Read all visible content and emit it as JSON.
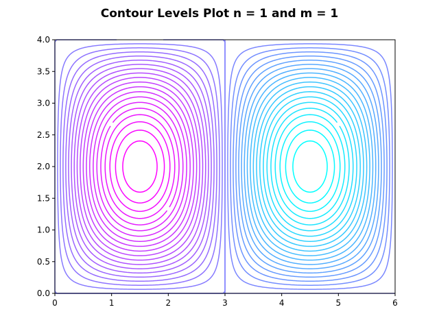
{
  "chart_data": {
    "type": "contour",
    "title": "Contour Levels Plot n = 1 and m = 1",
    "xlabel": "",
    "ylabel": "",
    "xlim": [
      0,
      6
    ],
    "ylim": [
      0,
      4
    ],
    "x_ticks": [
      "0",
      "1",
      "2",
      "3",
      "4",
      "5",
      "6"
    ],
    "y_ticks": [
      "0.0",
      "0.5",
      "1.0",
      "1.5",
      "2.0",
      "2.5",
      "3.0",
      "3.5",
      "4.0"
    ],
    "grid": false,
    "legend": "none",
    "colormap": "cool",
    "function": "sin(pi*x/3) * sin(pi*y/4)",
    "level_range": [
      -0.95,
      0.95
    ],
    "level_count": 39,
    "colors": {
      "low": "#00ffff",
      "high": "#ff00ff",
      "axis": "#000000",
      "background": "#ffffff"
    }
  }
}
